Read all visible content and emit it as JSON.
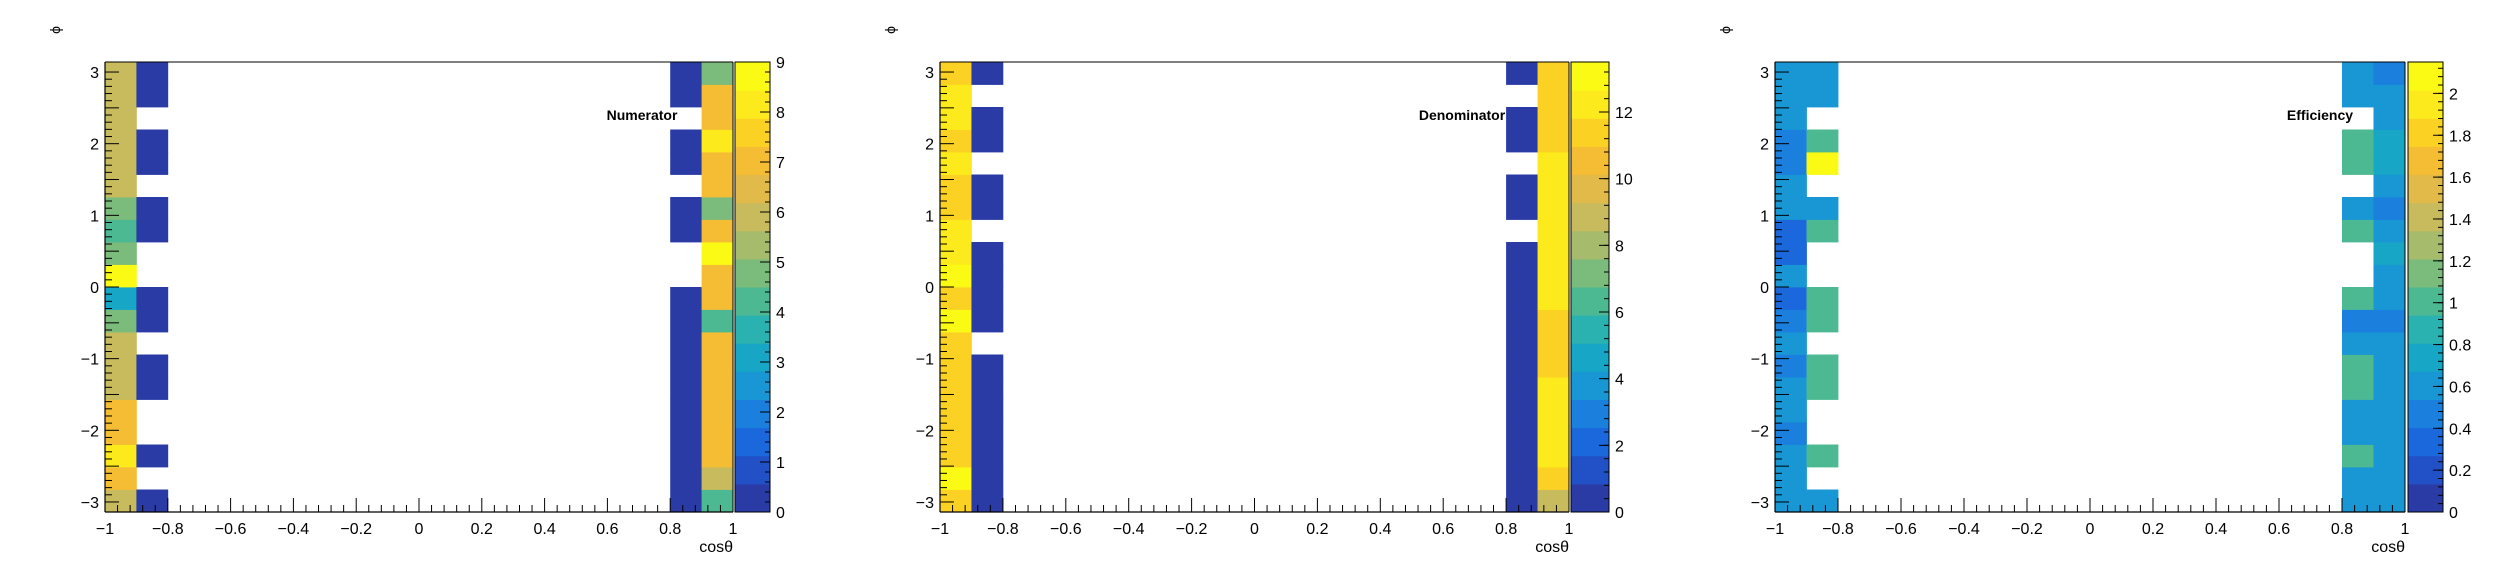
{
  "palette": [
    "#2a3ba6",
    "#2251c7",
    "#1b68dd",
    "#1b7fdd",
    "#1996d4",
    "#17a6c5",
    "#2ab2b0",
    "#4cb993",
    "#7bbb7c",
    "#a6bc6c",
    "#c8bb5e",
    "#e1ba4a",
    "#f4bd34",
    "#fbd224",
    "#fcea1c",
    "#fafa14"
  ],
  "chart_data": [
    {
      "type": "heatmap",
      "title": "Numerator",
      "xlabel": "cosθ",
      "ylabel": "ϕ",
      "xlim": [
        -1,
        1
      ],
      "ylim": [
        -3.14,
        3.14
      ],
      "x_ticks": [
        -1,
        -0.8,
        -0.6,
        -0.4,
        -0.2,
        0,
        0.2,
        0.4,
        0.6,
        0.8,
        1
      ],
      "x_tick_labels": [
        "−1",
        "−0.8",
        "−0.6",
        "−0.4",
        "−0.2",
        "0",
        "0.2",
        "0.4",
        "0.6",
        "0.8",
        "1"
      ],
      "y_ticks": [
        -3,
        -2,
        -1,
        0,
        1,
        2,
        3
      ],
      "y_tick_labels": [
        "−3",
        "−2",
        "−1",
        "0",
        "1",
        "2",
        "3"
      ],
      "z_range": [
        0,
        9
      ],
      "z_ticks": [
        0,
        1,
        2,
        3,
        4,
        5,
        6,
        7,
        8,
        9
      ],
      "z_tick_labels": [
        "0",
        "1",
        "2",
        "3",
        "4",
        "5",
        "6",
        "7",
        "8",
        "9"
      ],
      "x_bin_edges": [
        -1,
        -0.9,
        -0.8,
        0.8,
        0.9,
        1
      ],
      "n_phi_bins": 20,
      "columns": [
        {
          "x_low": -1,
          "x_high": -0.9,
          "values": [
            6,
            7,
            8,
            7,
            7,
            6,
            6,
            6,
            5,
            3,
            9,
            5,
            4,
            5,
            6,
            6,
            6,
            6,
            6,
            6
          ]
        },
        {
          "x_low": -0.9,
          "x_high": -0.8,
          "values": [
            0,
            null,
            0,
            null,
            null,
            0,
            0,
            null,
            0,
            0,
            null,
            null,
            0,
            0,
            null,
            0,
            0,
            null,
            0,
            0
          ]
        },
        {
          "x_low": 0.8,
          "x_high": 0.9,
          "values": [
            0,
            0,
            0,
            0,
            0,
            0,
            0,
            0,
            0,
            0,
            null,
            null,
            0,
            0,
            null,
            0,
            0,
            null,
            0,
            0
          ]
        },
        {
          "x_low": 0.9,
          "x_high": 1,
          "values": [
            4,
            6,
            7,
            7,
            7,
            7,
            7,
            7,
            4,
            7,
            7,
            9,
            7,
            5,
            7,
            7,
            8,
            7,
            7,
            5
          ]
        }
      ]
    },
    {
      "type": "heatmap",
      "title": "Denominator",
      "xlabel": "cosθ",
      "ylabel": "ϕ",
      "xlim": [
        -1,
        1
      ],
      "ylim": [
        -3.14,
        3.14
      ],
      "x_ticks": [
        -1,
        -0.8,
        -0.6,
        -0.4,
        -0.2,
        0,
        0.2,
        0.4,
        0.6,
        0.8,
        1
      ],
      "x_tick_labels": [
        "−1",
        "−0.8",
        "−0.6",
        "−0.4",
        "−0.2",
        "0",
        "0.2",
        "0.4",
        "0.6",
        "0.8",
        "1"
      ],
      "y_ticks": [
        -3,
        -2,
        -1,
        0,
        1,
        2,
        3
      ],
      "y_tick_labels": [
        "−3",
        "−2",
        "−1",
        "0",
        "1",
        "2",
        "3"
      ],
      "z_range": [
        0,
        13.5
      ],
      "z_ticks": [
        0,
        2,
        4,
        6,
        8,
        10,
        12
      ],
      "z_tick_labels": [
        "0",
        "2",
        "4",
        "6",
        "8",
        "10",
        "12"
      ],
      "x_bin_edges": [
        -1,
        -0.9,
        -0.8,
        0.8,
        0.9,
        1
      ],
      "n_phi_bins": 20,
      "columns": [
        {
          "x_low": -1,
          "x_high": -0.9,
          "values": [
            11,
            13,
            11,
            11,
            11,
            11,
            11,
            11,
            13,
            11,
            13,
            12,
            12,
            11,
            11,
            12,
            11,
            12,
            12,
            11
          ]
        },
        {
          "x_low": -0.9,
          "x_high": -0.8,
          "values": [
            0,
            0,
            0,
            0,
            0,
            0,
            0,
            null,
            0,
            0,
            0,
            0,
            null,
            0,
            0,
            null,
            0,
            0,
            null,
            0
          ]
        },
        {
          "x_low": 0.8,
          "x_high": 0.9,
          "values": [
            0,
            0,
            0,
            0,
            0,
            0,
            0,
            0,
            0,
            0,
            0,
            0,
            null,
            0,
            0,
            null,
            0,
            0,
            null,
            0
          ]
        },
        {
          "x_low": 0.9,
          "x_high": 1,
          "values": [
            9,
            11,
            12,
            12,
            12,
            12,
            11,
            11,
            11,
            12,
            12,
            12,
            12,
            12,
            12,
            12,
            11,
            11,
            11,
            11
          ]
        }
      ]
    },
    {
      "type": "heatmap",
      "title": "Efficiency",
      "xlabel": "cosθ",
      "ylabel": "ϕ",
      "xlim": [
        -1,
        1
      ],
      "ylim": [
        -3.14,
        3.14
      ],
      "x_ticks": [
        -1,
        -0.8,
        -0.6,
        -0.4,
        -0.2,
        0,
        0.2,
        0.4,
        0.6,
        0.8,
        1
      ],
      "x_tick_labels": [
        "−1",
        "−0.8",
        "−0.6",
        "−0.4",
        "−0.2",
        "0",
        "0.2",
        "0.4",
        "0.6",
        "0.8",
        "1"
      ],
      "y_ticks": [
        -3,
        -2,
        -1,
        0,
        1,
        2,
        3
      ],
      "y_tick_labels": [
        "−3",
        "−2",
        "−1",
        "0",
        "1",
        "2",
        "3"
      ],
      "z_range": [
        0,
        2.15
      ],
      "z_ticks": [
        0,
        0.2,
        0.4,
        0.6,
        0.8,
        1,
        1.2,
        1.4,
        1.6,
        1.8,
        2
      ],
      "z_tick_labels": [
        "0",
        "0.2",
        "0.4",
        "0.6",
        "0.8",
        "1",
        "1.2",
        "1.4",
        "1.6",
        "1.8",
        "2"
      ],
      "x_bin_edges": [
        -1,
        -0.9,
        -0.8,
        0.8,
        0.9,
        1
      ],
      "n_phi_bins": 20,
      "columns": [
        {
          "x_low": -1,
          "x_high": -0.9,
          "values": [
            0.55,
            0.55,
            0.6,
            0.5,
            0.55,
            0.55,
            0.5,
            0.55,
            0.5,
            0.3,
            0.55,
            0.4,
            0.4,
            0.55,
            0.55,
            0.5,
            0.5,
            0.55,
            0.55,
            0.55
          ]
        },
        {
          "x_low": -0.9,
          "x_high": -0.8,
          "values": [
            0.6,
            null,
            1,
            null,
            null,
            1,
            1,
            null,
            1,
            1,
            null,
            null,
            1,
            0.6,
            null,
            2.15,
            1,
            null,
            0.6,
            0.6
          ]
        },
        {
          "x_low": 0.8,
          "x_high": 0.9,
          "values": [
            0.6,
            0.6,
            1,
            0.6,
            0.6,
            1,
            1,
            0.6,
            0.5,
            1,
            null,
            null,
            1,
            0.6,
            null,
            1,
            1,
            null,
            0.6,
            0.6
          ]
        },
        {
          "x_low": 0.9,
          "x_high": 1,
          "values": [
            0.6,
            0.6,
            0.6,
            0.6,
            0.6,
            0.6,
            0.6,
            0.6,
            0.5,
            0.6,
            0.6,
            0.7,
            0.6,
            0.5,
            0.6,
            0.7,
            0.7,
            0.6,
            0.6,
            0.5
          ]
        }
      ]
    }
  ]
}
